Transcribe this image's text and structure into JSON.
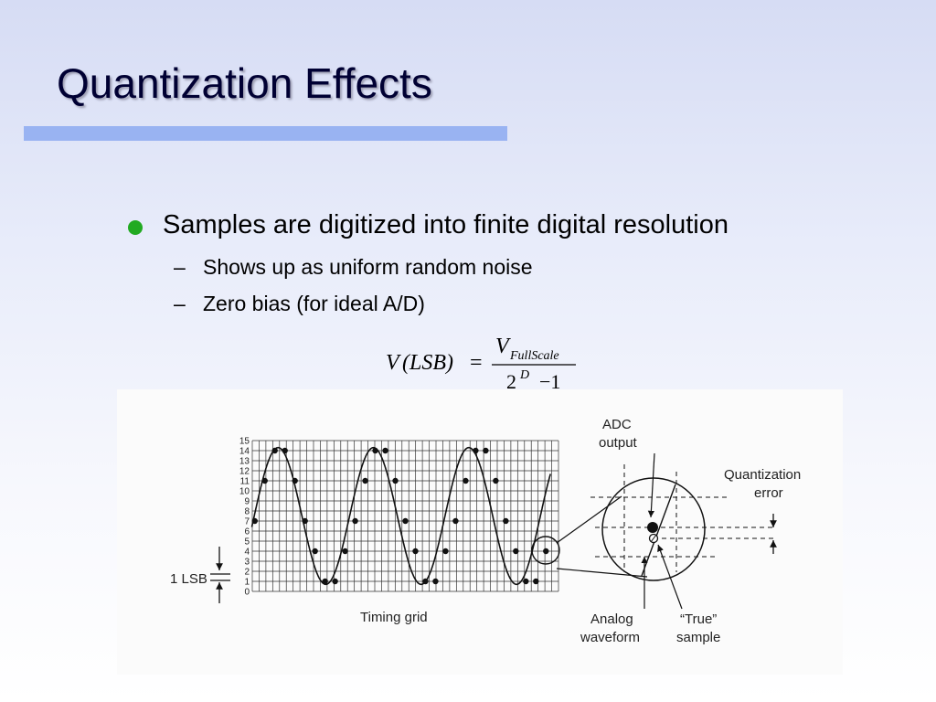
{
  "slide": {
    "title": "Quantization Effects",
    "colors": {
      "title_bar": "#99b3f2",
      "bullet": "#22aa22",
      "title_text": "#000033"
    },
    "bullets": [
      {
        "text": "Samples are digitized into finite digital resolution",
        "sub": [
          {
            "dash": "–",
            "text": "Shows up as uniform random noise"
          },
          {
            "dash": "–",
            "text": "Zero bias (for ideal A/D)"
          }
        ]
      }
    ],
    "formula": {
      "lhs_v": "V",
      "lhs_arg": "(LSB)",
      "equals": "=",
      "num_v": "V",
      "num_sub": "FullScale",
      "den_base": "2",
      "den_exp": "D",
      "den_rest": "−1"
    }
  },
  "figure": {
    "y_ticks": [
      "0",
      "1",
      "2",
      "3",
      "4",
      "5",
      "6",
      "7",
      "8",
      "9",
      "10",
      "11",
      "12",
      "13",
      "14",
      "15"
    ],
    "samples": [
      7,
      11,
      14,
      14,
      11,
      7,
      4,
      1,
      1,
      4,
      7,
      11,
      14,
      14,
      11,
      7,
      4,
      1,
      1,
      4,
      7,
      11,
      14,
      14,
      11,
      7,
      4,
      1,
      1,
      4
    ],
    "labels": {
      "lsb": "1 LSB",
      "timing_grid": "Timing grid",
      "adc_output_1": "ADC",
      "adc_output_2": "output",
      "quant_error_1": "Quantization",
      "quant_error_2": "error",
      "analog_1": "Analog",
      "analog_2": "waveform",
      "true_1": "“True”",
      "true_2": "sample"
    }
  }
}
